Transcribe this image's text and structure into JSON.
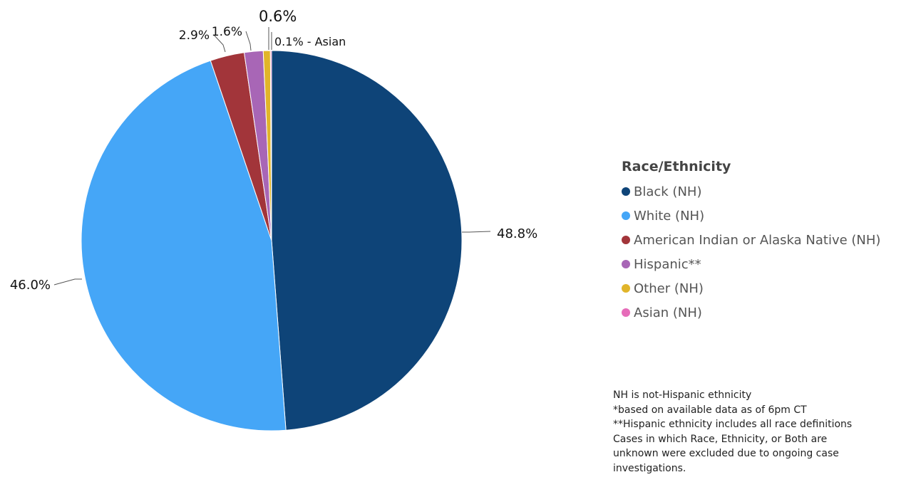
{
  "chart_data": {
    "type": "pie",
    "legend_title": "Race/Ethnicity",
    "legend_position": "right",
    "slices": [
      {
        "name": "Black (NH)",
        "value": 48.8,
        "color": "#0e4478",
        "label": "48.8%"
      },
      {
        "name": "White (NH)",
        "value": 46.0,
        "color": "#45a6f7",
        "label": "46.0%"
      },
      {
        "name": "American Indian or Alaska Native (NH)",
        "value": 2.9,
        "color": "#a2353a",
        "label": "2.9%"
      },
      {
        "name": "Hispanic**",
        "value": 1.6,
        "color": "#a866b6",
        "label": "1.6%"
      },
      {
        "name": "Other (NH)",
        "value": 0.6,
        "color": "#e1b52a",
        "label": "0.6%"
      },
      {
        "name": "Asian (NH)",
        "value": 0.1,
        "color": "#e66cb9",
        "label": "0.1% - Asian"
      }
    ]
  },
  "notes": [
    "NH is not-Hispanic ethnicity",
    "*based on available data as of 6pm CT",
    "**Hispanic ethnicity includes all race definitions",
    "Cases in which Race, Ethnicity, or Both are",
    "unknown were excluded due to ongoing case",
    "investigations."
  ]
}
